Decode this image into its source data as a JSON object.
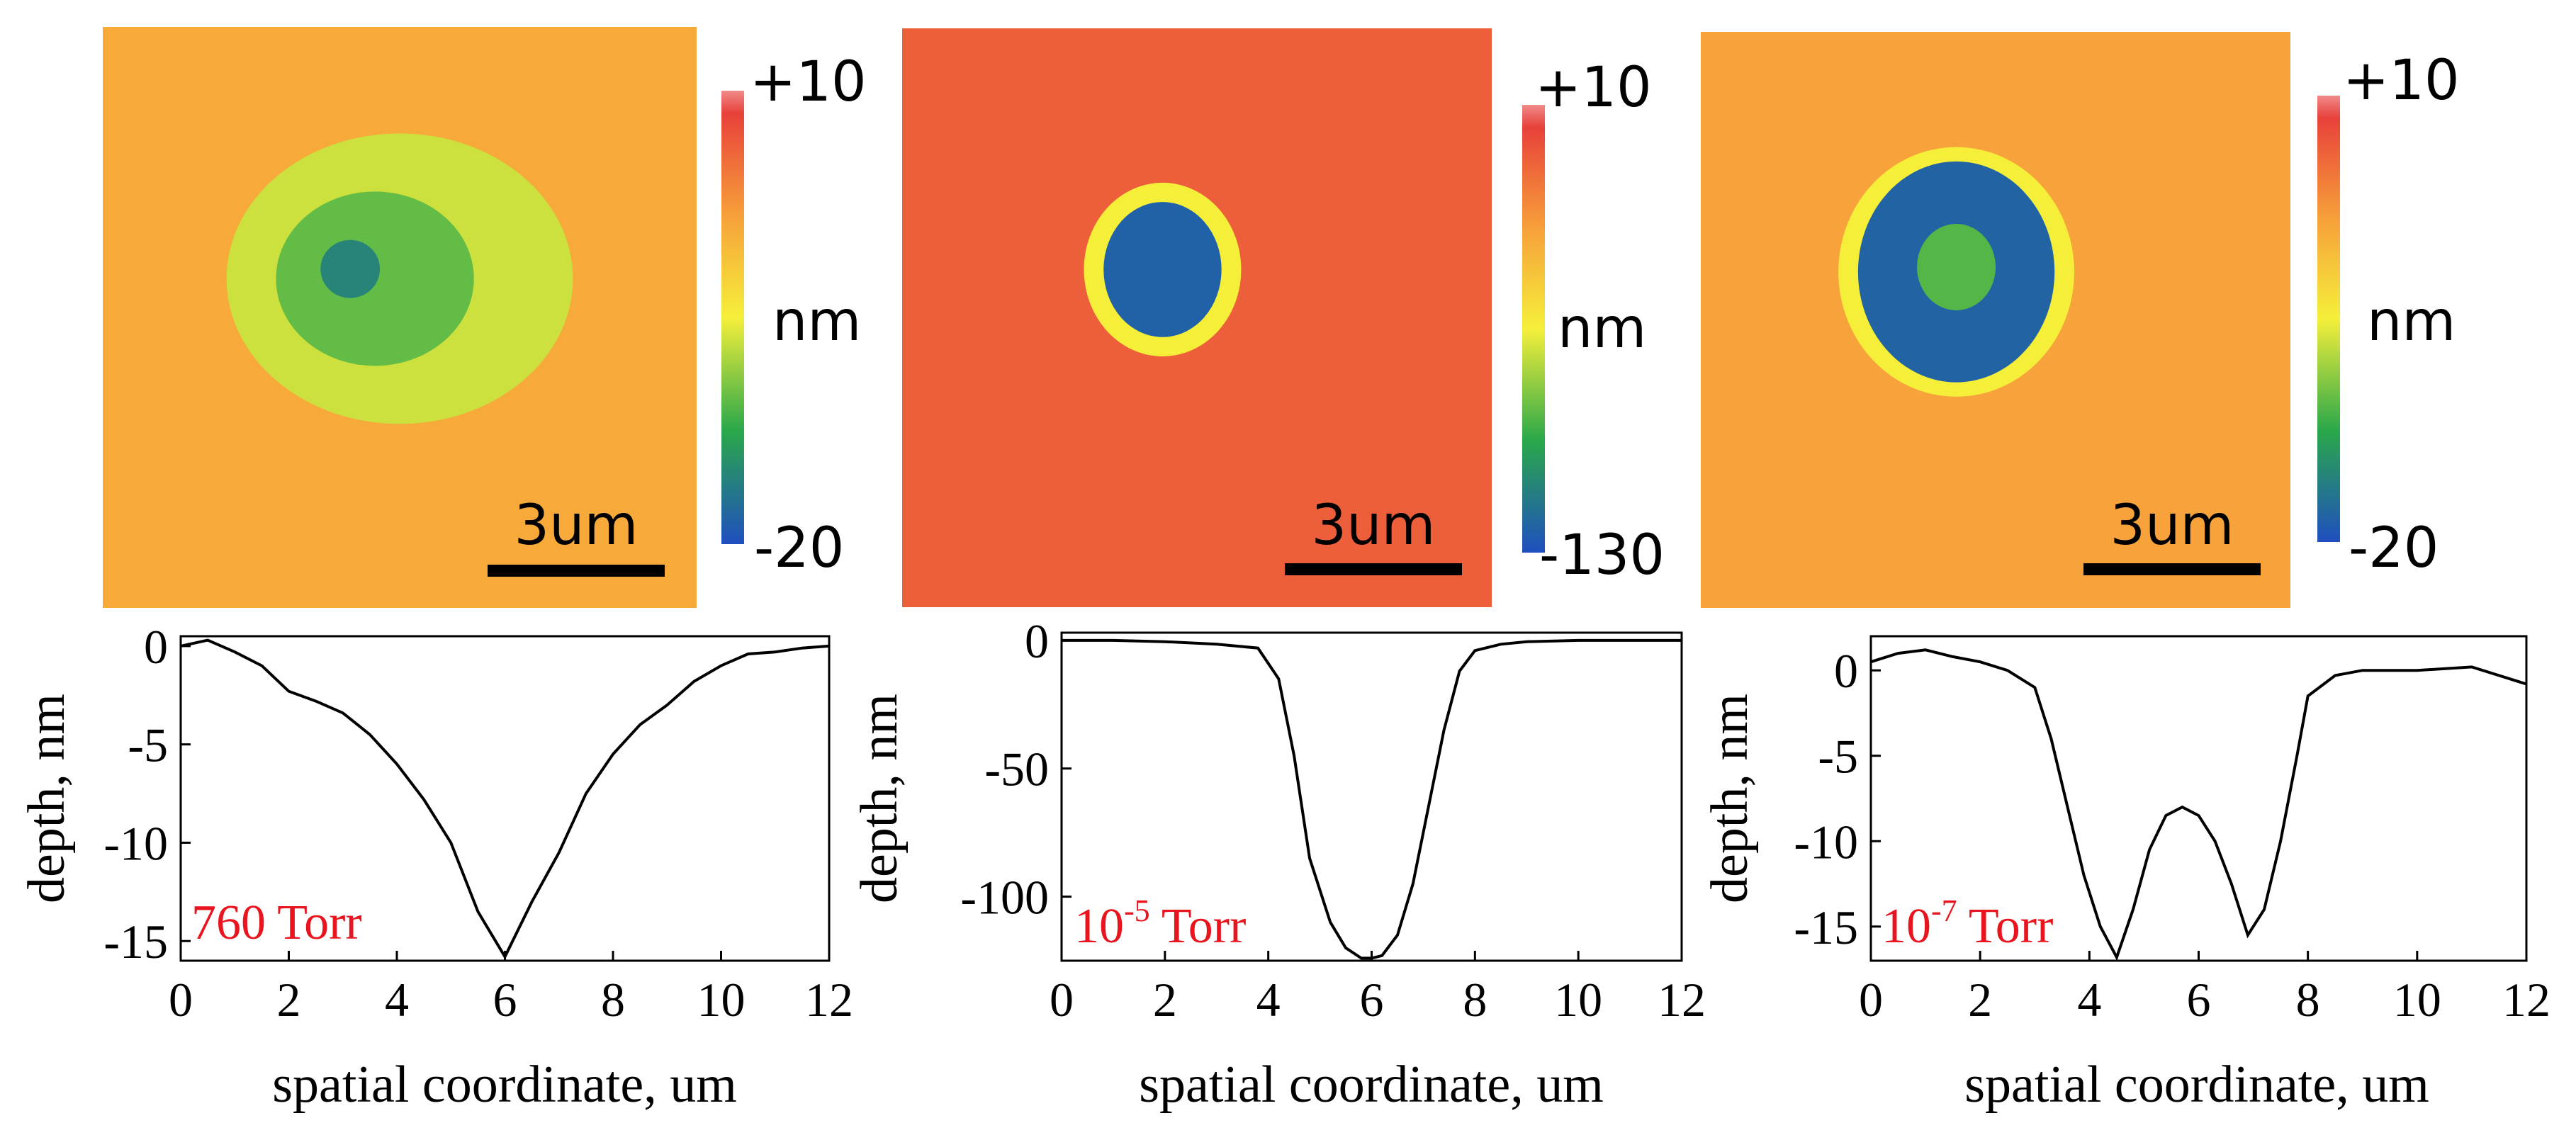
{
  "colors": {
    "background": "#ffffff",
    "axis": "#000000",
    "trace": "#000000",
    "pressure_label": "#e8141e",
    "cmap": [
      "#1f4fbf",
      "#2aa84a",
      "#f5ef3a",
      "#f7a23a",
      "#e8413a",
      "#f08a8a"
    ]
  },
  "chart_data": [
    {
      "type": "heatmap",
      "panel": "760 Torr",
      "colorbar": {
        "max_label": "+10",
        "min_label": "-20",
        "unit_label": "nm",
        "range": [
          -20,
          10
        ]
      },
      "scalebar_label": "3um",
      "background_level": 0.7,
      "features": [
        {
          "shape": "ellipse",
          "cx": 6,
          "cy": 5.2,
          "rx": 3.5,
          "ry": 3.0,
          "level": 0.45
        },
        {
          "shape": "ellipse",
          "cx": 5.5,
          "cy": 5.2,
          "rx": 2.0,
          "ry": 1.8,
          "level": 0.32
        },
        {
          "shape": "ellipse",
          "cx": 5.0,
          "cy": 5.0,
          "rx": 0.6,
          "ry": 0.6,
          "level": 0.15
        }
      ]
    },
    {
      "type": "heatmap",
      "panel": "10^-5 Torr",
      "colorbar": {
        "max_label": "+10",
        "min_label": "-130",
        "unit_label": "nm",
        "range": [
          -130,
          10
        ]
      },
      "scalebar_label": "3um",
      "background_level": 0.88,
      "features": [
        {
          "shape": "ellipse",
          "cx": 5.3,
          "cy": 5.0,
          "rx": 1.6,
          "ry": 1.8,
          "level": 0.5
        },
        {
          "shape": "ellipse",
          "cx": 5.3,
          "cy": 5.0,
          "rx": 1.2,
          "ry": 1.4,
          "level": 0.05
        }
      ]
    },
    {
      "type": "heatmap",
      "panel": "10^-7 Torr",
      "colorbar": {
        "max_label": "+10",
        "min_label": "-20",
        "unit_label": "nm",
        "range": [
          -20,
          10
        ]
      },
      "scalebar_label": "3um",
      "background_level": 0.72,
      "features": [
        {
          "shape": "ellipse",
          "cx": 5.2,
          "cy": 5.0,
          "rx": 2.4,
          "ry": 2.6,
          "level": 0.5
        },
        {
          "shape": "ellipse",
          "cx": 5.2,
          "cy": 5.0,
          "rx": 2.0,
          "ry": 2.3,
          "level": 0.06
        },
        {
          "shape": "ellipse",
          "cx": 5.2,
          "cy": 4.9,
          "rx": 0.8,
          "ry": 0.9,
          "level": 0.3
        }
      ]
    },
    {
      "type": "line",
      "title_label": {
        "main": "760 Torr",
        "base": "",
        "exp": "",
        "rest": ""
      },
      "xlabel": "spatial coordinate, um",
      "ylabel": "depth, nm",
      "xlim": [
        0,
        12
      ],
      "ylim": [
        -16,
        0.5
      ],
      "xticks": [
        0,
        2,
        4,
        6,
        8,
        10,
        12
      ],
      "yticks": [
        0,
        -5,
        -10,
        -15
      ],
      "x": [
        0,
        0.5,
        1,
        1.5,
        2,
        2.5,
        3,
        3.5,
        4,
        4.5,
        5,
        5.5,
        6,
        6.5,
        7,
        7.5,
        8,
        8.5,
        9,
        9.5,
        10,
        10.5,
        11,
        11.5,
        12
      ],
      "y": [
        0,
        0.3,
        -0.3,
        -1.0,
        -2.3,
        -2.8,
        -3.4,
        -4.5,
        -6.0,
        -7.8,
        -10.0,
        -13.5,
        -15.8,
        -13.0,
        -10.5,
        -7.5,
        -5.5,
        -4.0,
        -3.0,
        -1.8,
        -1.0,
        -0.4,
        -0.3,
        -0.1,
        0
      ]
    },
    {
      "type": "line",
      "title_label": {
        "main": "",
        "base": "10",
        "exp": "-5",
        "rest": " Torr"
      },
      "xlabel": "spatial coordinate, um",
      "ylabel": "depth, nm",
      "xlim": [
        0,
        12
      ],
      "ylim": [
        -125,
        3
      ],
      "xticks": [
        0,
        2,
        4,
        6,
        8,
        10,
        12
      ],
      "yticks": [
        0,
        -50,
        -100
      ],
      "x": [
        0,
        1,
        2,
        3,
        3.8,
        4.2,
        4.5,
        4.8,
        5.2,
        5.5,
        5.8,
        6.0,
        6.2,
        6.5,
        6.8,
        7.1,
        7.4,
        7.7,
        8.0,
        8.5,
        9,
        10,
        11,
        12
      ],
      "y": [
        0,
        0,
        -0.5,
        -1.5,
        -3,
        -15,
        -45,
        -85,
        -110,
        -120,
        -124,
        -124,
        -123,
        -115,
        -95,
        -65,
        -35,
        -12,
        -4,
        -1.5,
        -0.5,
        0,
        0,
        0
      ]
    },
    {
      "type": "line",
      "title_label": {
        "main": "",
        "base": "10",
        "exp": "-7",
        "rest": " Torr"
      },
      "xlabel": "spatial coordinate, um",
      "ylabel": "depth, nm",
      "xlim": [
        0,
        12
      ],
      "ylim": [
        -17,
        2
      ],
      "xticks": [
        0,
        2,
        4,
        6,
        8,
        10,
        12
      ],
      "yticks": [
        0,
        -5,
        -10,
        -15
      ],
      "x": [
        0,
        0.5,
        1,
        1.5,
        2,
        2.5,
        3,
        3.3,
        3.6,
        3.9,
        4.2,
        4.5,
        4.8,
        5.1,
        5.4,
        5.7,
        6.0,
        6.3,
        6.6,
        6.9,
        7.2,
        7.5,
        7.8,
        8.0,
        8.5,
        9,
        10,
        11,
        12
      ],
      "y": [
        0.5,
        1.0,
        1.2,
        0.8,
        0.5,
        0,
        -1.0,
        -4.0,
        -8.0,
        -12.0,
        -15.0,
        -16.8,
        -14.0,
        -10.5,
        -8.5,
        -8.0,
        -8.5,
        -10.0,
        -12.5,
        -15.5,
        -14.0,
        -10.0,
        -5.0,
        -1.5,
        -0.3,
        0,
        0,
        0.2,
        -0.8
      ]
    }
  ]
}
